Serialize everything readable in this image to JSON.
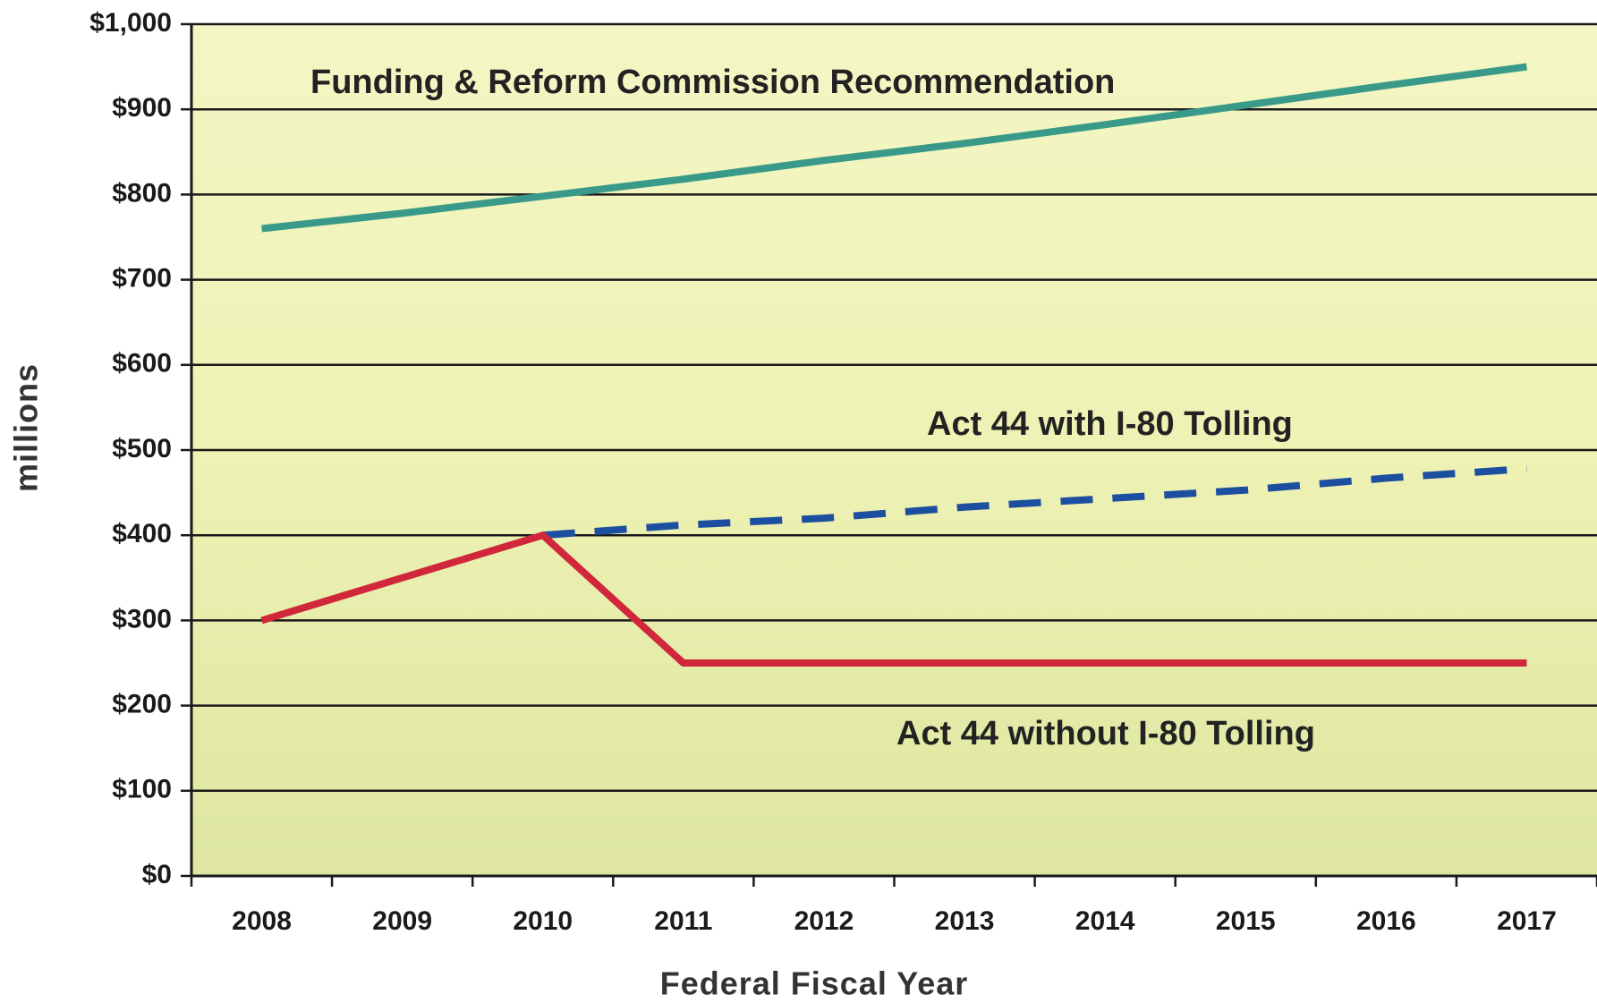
{
  "chart_data": {
    "type": "line",
    "x_label": "Federal Fiscal Year",
    "y_label": "millions",
    "categories": [
      "2008",
      "2009",
      "2010",
      "2011",
      "2012",
      "2013",
      "2014",
      "2015",
      "2016",
      "2017"
    ],
    "series": [
      {
        "name": "Funding & Reform Commission Recommendation",
        "color": "#3a9a8a",
        "dashed": false,
        "values": [
          760,
          778,
          798,
          818,
          840,
          860,
          882,
          905,
          928,
          950
        ]
      },
      {
        "name": "Act 44 with I-80 Tolling",
        "color": "#1c4fa0",
        "dashed": true,
        "values": [
          null,
          null,
          400,
          412,
          420,
          433,
          443,
          453,
          467,
          478
        ]
      },
      {
        "name": "Act 44 without I-80 Tolling",
        "color": "#d0283a",
        "dashed": false,
        "values": [
          300,
          350,
          400,
          250,
          250,
          250,
          250,
          250,
          250,
          250
        ]
      }
    ],
    "ylim": [
      0,
      1000
    ],
    "yticks": [
      {
        "value": 0,
        "label": "$0"
      },
      {
        "value": 100,
        "label": "$100"
      },
      {
        "value": 200,
        "label": "$200"
      },
      {
        "value": 300,
        "label": "$300"
      },
      {
        "value": 400,
        "label": "$400"
      },
      {
        "value": 500,
        "label": "$500"
      },
      {
        "value": 600,
        "label": "$600"
      },
      {
        "value": 700,
        "label": "$700"
      },
      {
        "value": 800,
        "label": "$800"
      },
      {
        "value": 900,
        "label": "$900"
      },
      {
        "value": 1000,
        "label": "$1,000"
      }
    ],
    "grid": true
  }
}
